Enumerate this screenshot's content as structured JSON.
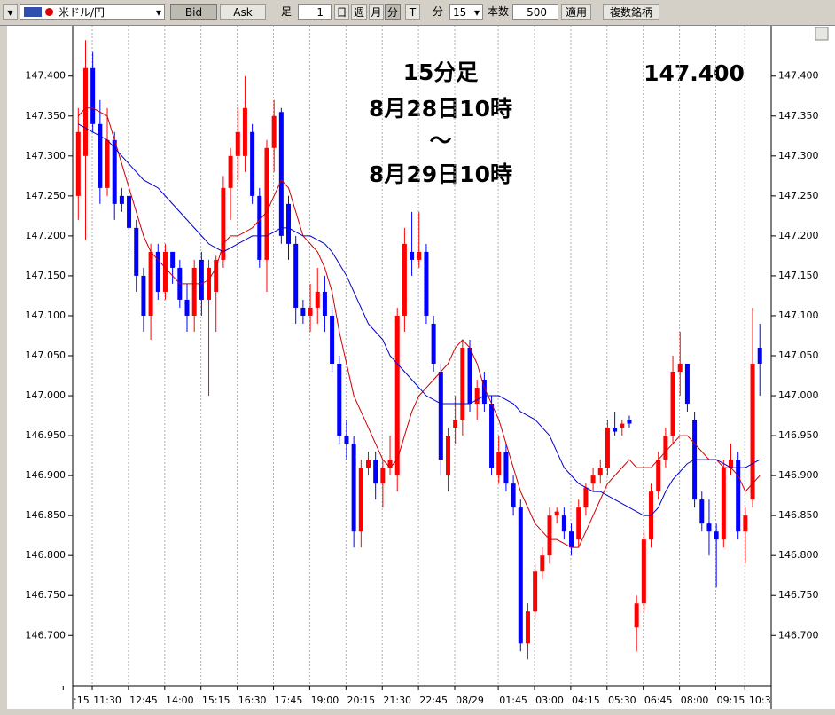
{
  "toolbar": {
    "symbol": "米ドル/円",
    "bid": "Bid",
    "ask": "Ask",
    "ashi": "足",
    "ashi_input": "1",
    "day": "日",
    "week": "週",
    "month": "月",
    "minute": "分",
    "tick": "T",
    "unit": "分",
    "interval": "15",
    "count_label": "本数",
    "count": "500",
    "apply": "適用",
    "multi": "複数銘柄"
  },
  "chart_data": {
    "type": "candlestick",
    "annotations": [
      "15分足",
      "8月28日10時",
      "～",
      "8月29日10時"
    ],
    "price_label": "147.400",
    "up_color": "#ff0000",
    "down_color": "#0000ff",
    "categories": [
      ":15",
      null,
      null,
      null,
      "11:30",
      null,
      null,
      null,
      null,
      "12:45",
      null,
      null,
      null,
      null,
      "14:00",
      null,
      null,
      null,
      null,
      "15:15",
      null,
      null,
      null,
      null,
      "16:30",
      null,
      null,
      null,
      null,
      "17:45",
      null,
      null,
      null,
      null,
      "19:00",
      null,
      null,
      null,
      null,
      "20:15",
      null,
      null,
      null,
      null,
      "21:30",
      null,
      null,
      null,
      null,
      "22:45",
      null,
      null,
      null,
      null,
      "08/29",
      null,
      null,
      null,
      null,
      null,
      "01:45",
      null,
      null,
      null,
      null,
      "03:00",
      null,
      null,
      null,
      null,
      "04:15",
      null,
      null,
      null,
      null,
      "05:30",
      null,
      null,
      null,
      null,
      "06:45",
      null,
      null,
      null,
      null,
      "08:00",
      null,
      null,
      null,
      null,
      "09:15",
      null,
      null,
      null,
      "10:3"
    ],
    "open": [
      147.25,
      147.3,
      147.41,
      147.34,
      147.26,
      147.32,
      147.25,
      147.25,
      147.21,
      147.15,
      147.1,
      147.18,
      147.13,
      147.18,
      147.16,
      147.12,
      147.1,
      147.17,
      147.12,
      147.13,
      147.17,
      147.26,
      147.3,
      147.3,
      147.33,
      147.25,
      147.17,
      147.31,
      147.355,
      147.24,
      147.19,
      147.11,
      147.1,
      147.11,
      147.13,
      147.1,
      147.04,
      146.95,
      146.94,
      146.83,
      146.91,
      146.92,
      146.89,
      146.91,
      146.9,
      147.1,
      147.18,
      147.17,
      147.18,
      147.09,
      147.03,
      146.9,
      146.96,
      146.97,
      147.06,
      146.99,
      147.02,
      146.99,
      146.9,
      146.93,
      146.89,
      146.86,
      146.69,
      146.73,
      146.78,
      146.8,
      146.85,
      146.85,
      146.83,
      146.82,
      146.86,
      146.89,
      146.9,
      146.91,
      146.96,
      146.96,
      146.97,
      146.71,
      146.74,
      146.82,
      146.88,
      146.92,
      146.95,
      147.03,
      147.04,
      146.97,
      146.87,
      146.84,
      146.83,
      146.82,
      146.91,
      146.92,
      146.83,
      146.87,
      147.06
    ],
    "high": [
      147.36,
      147.445,
      147.43,
      147.37,
      147.36,
      147.33,
      147.26,
      147.26,
      147.22,
      147.16,
      147.19,
      147.19,
      147.19,
      147.18,
      147.17,
      147.14,
      147.17,
      147.18,
      147.17,
      147.175,
      147.275,
      147.31,
      147.36,
      147.4,
      147.34,
      147.26,
      147.32,
      147.37,
      147.36,
      147.25,
      147.2,
      147.12,
      147.14,
      147.16,
      147.15,
      147.11,
      147.05,
      146.97,
      146.95,
      146.92,
      146.93,
      146.93,
      146.92,
      146.95,
      147.11,
      147.21,
      147.23,
      147.23,
      147.19,
      147.1,
      147.04,
      146.96,
      147.0,
      147.07,
      147.07,
      147.02,
      147.03,
      147.0,
      146.95,
      146.94,
      146.9,
      146.87,
      146.74,
      146.79,
      146.81,
      146.86,
      146.86,
      146.86,
      146.84,
      146.87,
      146.89,
      146.91,
      146.92,
      146.97,
      146.98,
      146.97,
      146.975,
      146.75,
      146.83,
      146.89,
      146.93,
      146.96,
      147.05,
      147.08,
      147.04,
      146.98,
      146.88,
      146.87,
      146.84,
      146.92,
      146.94,
      146.93,
      146.86,
      147.11,
      147.09
    ],
    "low": [
      147.22,
      147.195,
      147.33,
      147.24,
      147.25,
      147.22,
      147.23,
      147.18,
      147.13,
      147.08,
      147.07,
      147.12,
      147.12,
      147.14,
      147.11,
      147.08,
      147.08,
      147.1,
      147.0,
      147.08,
      147.16,
      147.22,
      147.27,
      147.28,
      147.24,
      147.16,
      147.13,
      147.28,
      147.19,
      147.17,
      147.09,
      147.09,
      147.08,
      147.09,
      147.08,
      147.03,
      146.94,
      146.92,
      146.81,
      146.81,
      146.9,
      146.87,
      146.86,
      146.9,
      146.88,
      147.08,
      147.15,
      147.16,
      147.09,
      147.03,
      146.9,
      146.88,
      146.94,
      146.95,
      146.98,
      146.97,
      146.98,
      146.9,
      146.89,
      146.88,
      146.85,
      146.68,
      146.67,
      146.72,
      146.77,
      146.79,
      146.84,
      146.82,
      146.8,
      146.81,
      146.85,
      146.88,
      146.89,
      146.9,
      146.95,
      146.95,
      146.96,
      146.68,
      146.73,
      146.81,
      146.87,
      146.91,
      146.94,
      147.0,
      146.98,
      146.86,
      146.83,
      146.8,
      146.76,
      146.81,
      146.9,
      146.82,
      146.79,
      146.86,
      147.0
    ],
    "close": [
      147.33,
      147.41,
      147.34,
      147.26,
      147.32,
      147.24,
      147.24,
      147.21,
      147.15,
      147.1,
      147.18,
      147.13,
      147.18,
      147.16,
      147.12,
      147.1,
      147.16,
      147.12,
      147.16,
      147.17,
      147.26,
      147.3,
      147.33,
      147.36,
      147.25,
      147.17,
      147.31,
      147.35,
      147.2,
      147.19,
      147.11,
      147.1,
      147.11,
      147.13,
      147.1,
      147.04,
      146.95,
      146.94,
      146.83,
      146.91,
      146.92,
      146.89,
      146.91,
      146.92,
      147.1,
      147.19,
      147.17,
      147.18,
      147.1,
      147.04,
      146.92,
      146.95,
      146.97,
      147.06,
      146.99,
      147.01,
      146.99,
      146.91,
      146.93,
      146.89,
      146.86,
      146.69,
      146.73,
      146.78,
      146.8,
      146.85,
      146.855,
      146.83,
      146.81,
      146.86,
      146.885,
      146.9,
      146.91,
      146.96,
      146.955,
      146.965,
      146.965,
      146.74,
      146.82,
      146.88,
      146.92,
      146.95,
      147.03,
      147.04,
      146.99,
      146.87,
      146.84,
      146.83,
      146.82,
      146.91,
      146.92,
      146.83,
      146.85,
      147.04,
      147.04
    ],
    "lines": [
      {
        "color": "#cc0000",
        "values": [
          147.35,
          147.36,
          147.36,
          147.355,
          147.35,
          147.32,
          147.29,
          147.26,
          147.23,
          147.2,
          147.18,
          147.17,
          147.16,
          147.15,
          147.14,
          147.14,
          147.14,
          147.14,
          147.145,
          147.16,
          147.19,
          147.2,
          147.2,
          147.205,
          147.21,
          147.22,
          147.23,
          147.25,
          147.27,
          147.26,
          147.23,
          147.2,
          147.19,
          147.18,
          147.16,
          147.13,
          147.08,
          147.04,
          147.0,
          146.98,
          146.96,
          146.94,
          146.92,
          146.91,
          146.92,
          146.95,
          146.98,
          147.0,
          147.01,
          147.02,
          147.03,
          147.04,
          147.06,
          147.07,
          147.06,
          147.04,
          147.01,
          146.99,
          146.97,
          146.94,
          146.91,
          146.88,
          146.86,
          146.84,
          146.83,
          146.82,
          146.82,
          146.815,
          146.81,
          146.81,
          146.83,
          146.85,
          146.87,
          146.89,
          146.9,
          146.91,
          146.92,
          146.91,
          146.91,
          146.91,
          146.92,
          146.93,
          146.94,
          146.95,
          146.95,
          146.94,
          146.93,
          146.92,
          146.92,
          146.91,
          146.91,
          146.9,
          146.88,
          146.89,
          146.9
        ]
      },
      {
        "color": "#0000cc",
        "values": [
          147.34,
          147.335,
          147.33,
          147.325,
          147.32,
          147.31,
          147.3,
          147.29,
          147.28,
          147.27,
          147.265,
          147.26,
          147.25,
          147.24,
          147.23,
          147.22,
          147.21,
          147.2,
          147.19,
          147.185,
          147.18,
          147.185,
          147.19,
          147.195,
          147.2,
          147.2,
          147.2,
          147.205,
          147.21,
          147.21,
          147.205,
          147.2,
          147.2,
          147.195,
          147.19,
          147.18,
          147.165,
          147.15,
          147.13,
          147.11,
          147.09,
          147.08,
          147.07,
          147.05,
          147.04,
          147.03,
          147.02,
          147.01,
          147.0,
          146.995,
          146.99,
          146.99,
          146.99,
          146.99,
          146.99,
          146.995,
          147.0,
          147.0,
          147.0,
          146.995,
          146.99,
          146.98,
          146.975,
          146.97,
          146.96,
          146.95,
          146.93,
          146.91,
          146.9,
          146.89,
          146.885,
          146.88,
          146.88,
          146.875,
          146.87,
          146.865,
          146.86,
          146.855,
          146.85,
          146.85,
          146.86,
          146.88,
          146.895,
          146.905,
          146.915,
          146.92,
          146.92,
          146.92,
          146.92,
          146.915,
          146.91,
          146.91,
          146.91,
          146.915,
          146.92
        ]
      }
    ],
    "ylim": [
      146.637,
      147.463
    ],
    "yticks": [
      {
        "value": 146.7,
        "label": "146.700"
      },
      {
        "value": 146.75,
        "label": "146.750"
      },
      {
        "value": 146.8,
        "label": "146.800"
      },
      {
        "value": 146.85,
        "label": "146.850"
      },
      {
        "value": 146.9,
        "label": "146.900"
      },
      {
        "value": 146.95,
        "label": "146.950"
      },
      {
        "value": 147.0,
        "label": "147.000"
      },
      {
        "value": 147.05,
        "label": "147.050"
      },
      {
        "value": 147.1,
        "label": "147.100"
      },
      {
        "value": 147.15,
        "label": "147.150"
      },
      {
        "value": 147.2,
        "label": "147.200"
      },
      {
        "value": 147.25,
        "label": "147.250"
      },
      {
        "value": 147.3,
        "label": "147.300"
      },
      {
        "value": 147.35,
        "label": "147.350"
      },
      {
        "value": 147.4,
        "label": "147.400"
      }
    ]
  }
}
